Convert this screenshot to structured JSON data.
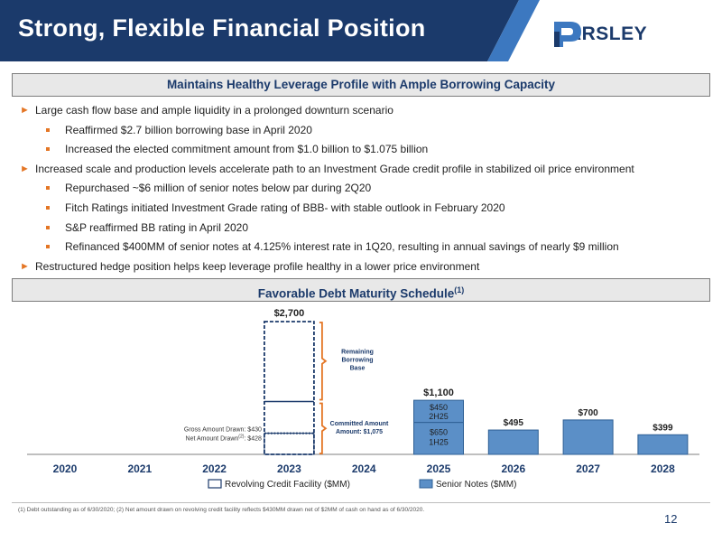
{
  "header": {
    "title": "Strong, Flexible Financial Position",
    "logo_text": "PARSLEY"
  },
  "section1": {
    "heading": "Maintains Healthy Leverage Profile with Ample Borrowing Capacity"
  },
  "bullets": [
    {
      "level": 1,
      "text": "Large cash flow base and ample liquidity in a prolonged downturn scenario"
    },
    {
      "level": 2,
      "text": "Reaffirmed $2.7 billion borrowing base in April 2020"
    },
    {
      "level": 2,
      "text": "Increased the elected commitment amount from $1.0 billion to $1.075 billion"
    },
    {
      "level": 1,
      "text": "Increased scale and production levels accelerate path to an Investment Grade credit profile in stabilized oil price environment"
    },
    {
      "level": 2,
      "text": "Repurchased ~$6 million of senior notes below par during 2Q20"
    },
    {
      "level": 2,
      "text": "Fitch Ratings initiated Investment Grade rating of BBB- with stable outlook in February 2020"
    },
    {
      "level": 2,
      "text": "S&P reaffirmed BB rating in April 2020"
    },
    {
      "level": 2,
      "text": "Refinanced $400MM of senior notes at 4.125% interest rate in 1Q20, resulting in annual savings of nearly $9 million"
    },
    {
      "level": 1,
      "text": "Restructured hedge position helps keep leverage profile healthy in a lower price environment"
    }
  ],
  "section2": {
    "heading": "Favorable Debt Maturity Schedule",
    "heading_sup": "(1)"
  },
  "chart_data": {
    "type": "bar",
    "categories": [
      "2020",
      "2021",
      "2022",
      "2023",
      "2024",
      "2025",
      "2026",
      "2027",
      "2028"
    ],
    "series": [
      {
        "name": "Revolving Credit Facility ($MM)",
        "values": [
          0,
          0,
          0,
          2700,
          0,
          0,
          0,
          0,
          0
        ]
      },
      {
        "name": "Senior Notes ($MM)",
        "values": [
          0,
          0,
          0,
          0,
          0,
          1100,
          495,
          700,
          399
        ]
      }
    ],
    "revolver_2023": {
      "borrowing_base": 2700,
      "committed": 1075,
      "gross_drawn": 430,
      "net_drawn": 428,
      "total_label": "$2,700",
      "remaining_label": "Remaining Borrowing Base",
      "committed_label": "Committed Amount: $1,075",
      "gross_label": "Gross Amount Drawn: $430",
      "net_label": "Net Amount Drawn",
      "net_sup": "(2)",
      "net_value": ": $428"
    },
    "notes_2025": {
      "total_label": "$1,100",
      "top": {
        "value": 450,
        "label": "$450",
        "sub": "2H25"
      },
      "bottom": {
        "value": 650,
        "label": "$650",
        "sub": "1H25"
      }
    },
    "bar_labels": {
      "2026": "$495",
      "2027": "$700",
      "2028": "$399"
    },
    "ylim": [
      0,
      2800
    ],
    "colors": {
      "notes_fill": "#5b8fc7",
      "notes_stroke": "#2e5f94",
      "revolver_stroke": "#1b3a6b",
      "brace": "#e47625",
      "axis_label": "#1b3a6b"
    }
  },
  "footnote": "(1) Debt outstanding as of 6/30/2020; (2) Net amount drawn on revolving credit facility reflects $430MM drawn net of $2MM of cash on hand as of 6/30/2020.",
  "page_number": "12"
}
